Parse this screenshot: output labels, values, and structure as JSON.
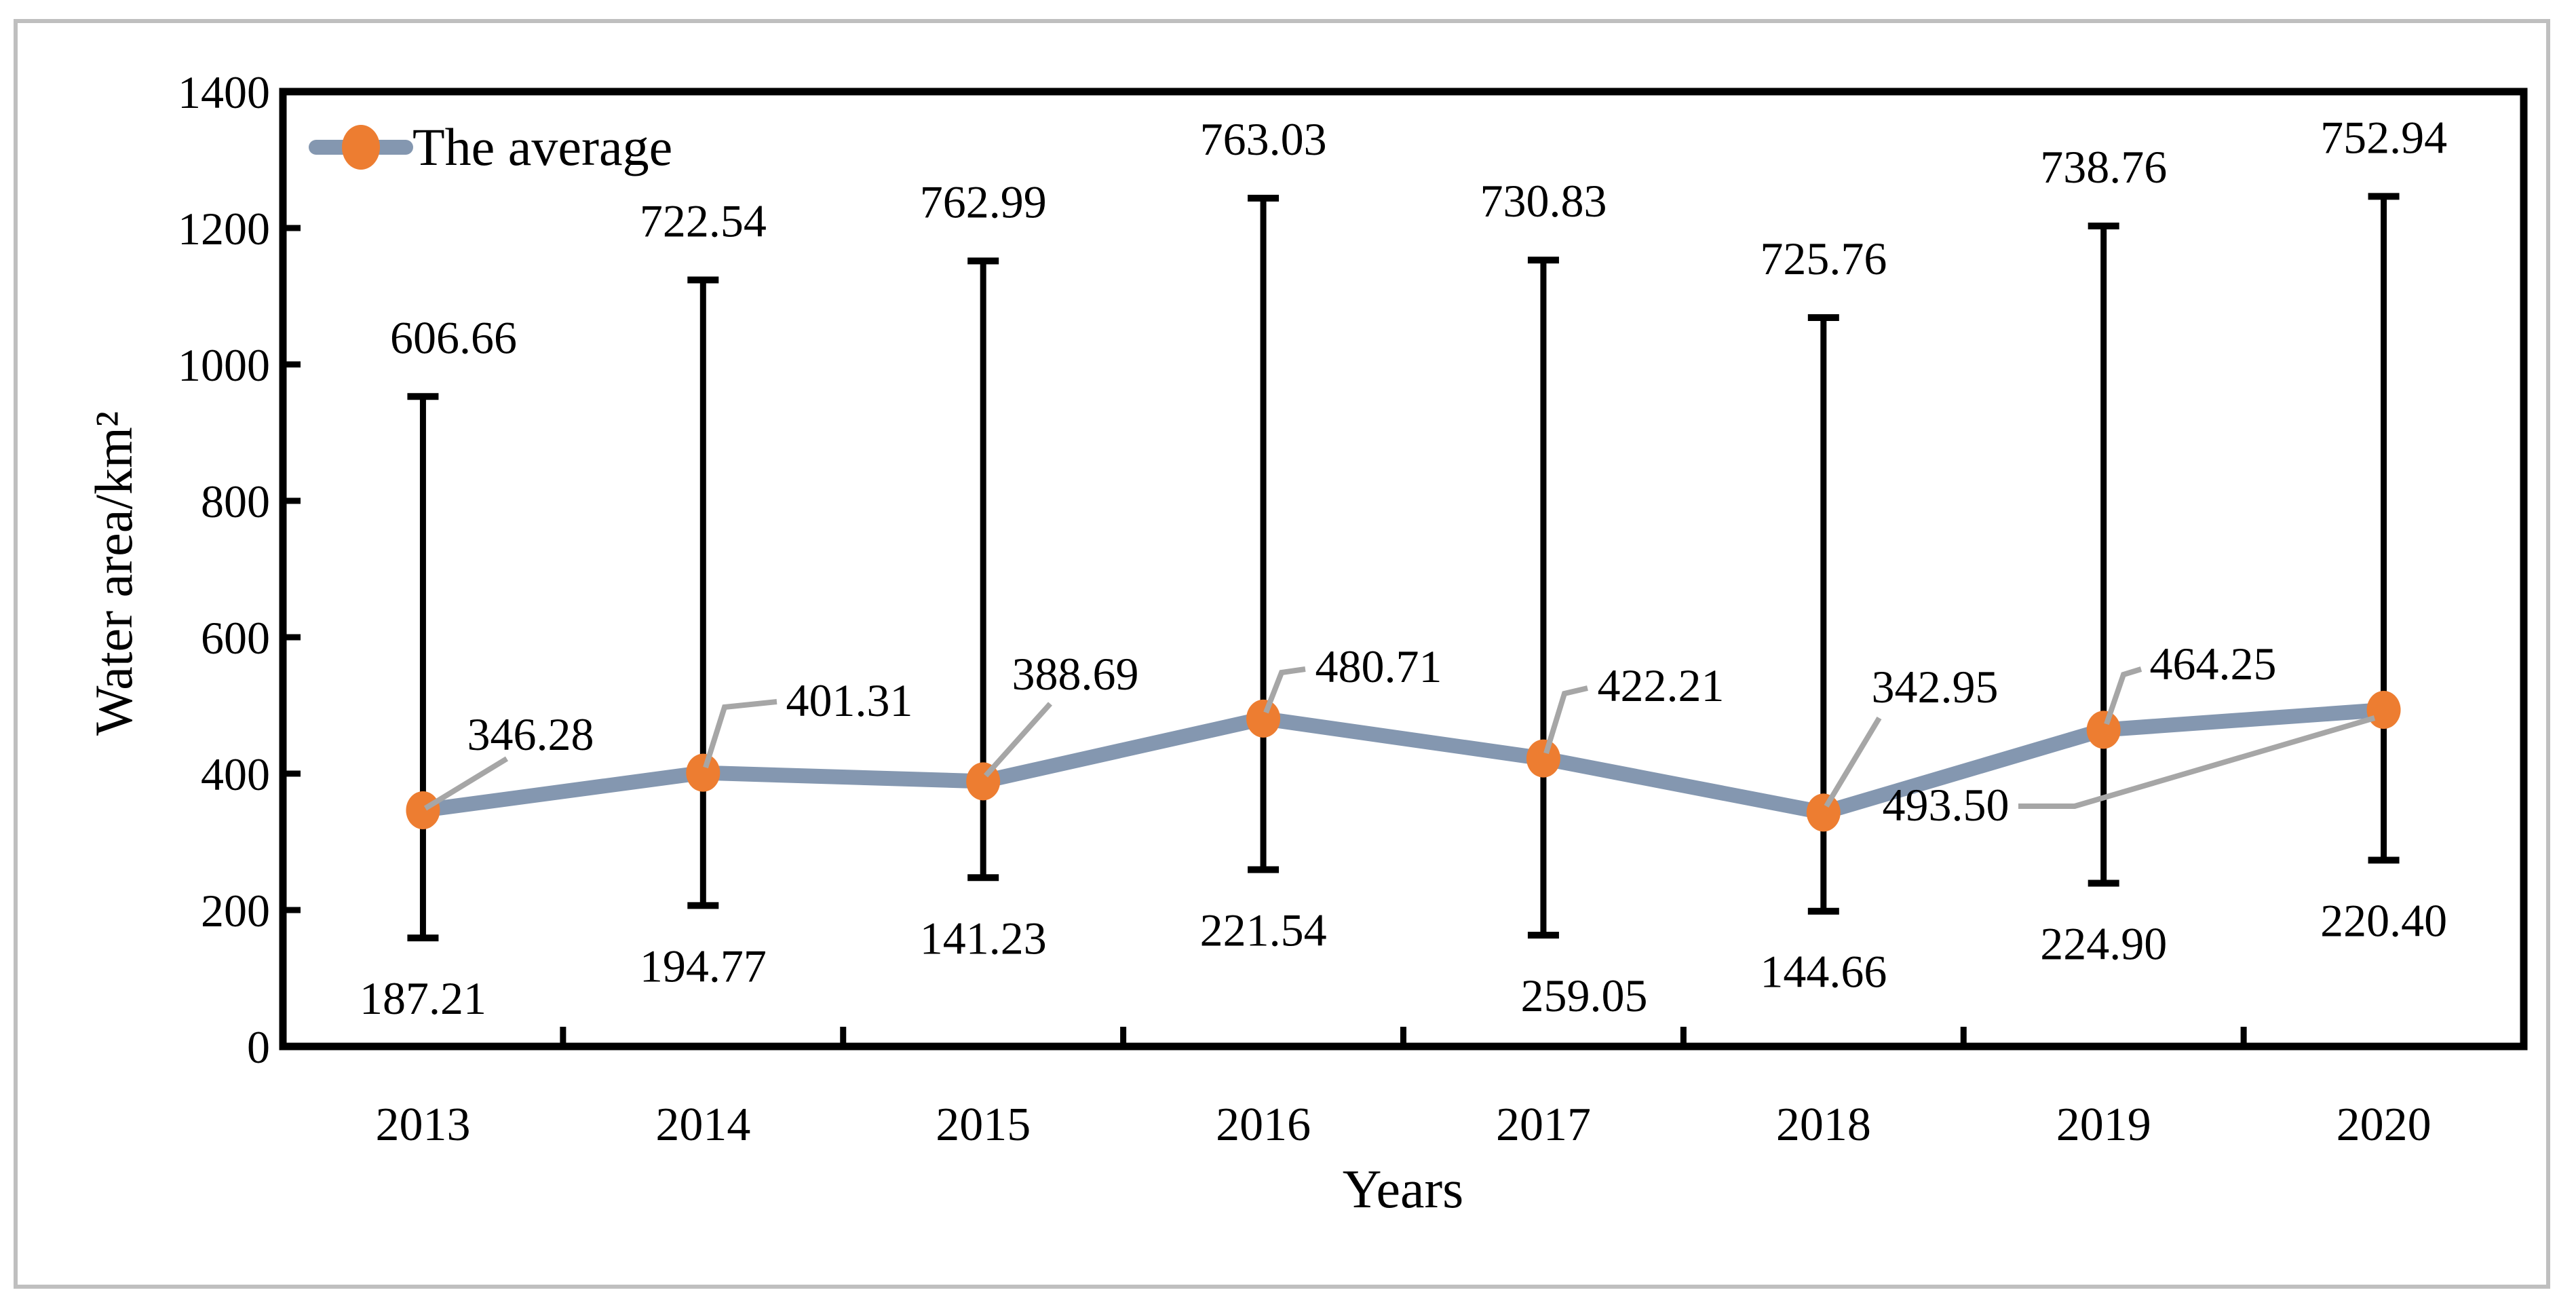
{
  "figure": {
    "kind": "line chart with error bars",
    "background": "#FFFFFF"
  },
  "legend": {
    "label": "The average",
    "position": "top-left-inside"
  },
  "chart_data": {
    "type": "line",
    "categories": [
      "2013",
      "2014",
      "2015",
      "2016",
      "2017",
      "2018",
      "2019",
      "2020"
    ],
    "series": [
      {
        "name": "The average",
        "values": [
          346.28,
          401.31,
          388.69,
          480.71,
          422.21,
          342.95,
          464.25,
          493.5
        ]
      }
    ],
    "error_bars": {
      "plus": [
        606.66,
        722.54,
        762.99,
        763.03,
        730.83,
        725.76,
        738.76,
        752.94
      ],
      "minus": [
        187.21,
        194.77,
        141.23,
        221.54,
        259.05,
        144.66,
        224.9,
        220.4
      ]
    },
    "point_labels": {
      "average": [
        "346.28",
        "401.31",
        "388.69",
        "480.71",
        "422.21",
        "342.95",
        "464.25",
        "493.50"
      ],
      "upper": [
        "606.66",
        "722.54",
        "762.99",
        "763.03",
        "730.83",
        "725.76",
        "738.76",
        "752.94"
      ],
      "lower": [
        "187.21",
        "194.77",
        "141.23",
        "221.54",
        "259.05",
        "144.66",
        "224.90",
        "220.40"
      ]
    },
    "xlabel": "Years",
    "ylabel": "Water area/km²",
    "ylim": [
      0,
      1400
    ],
    "yticks": [
      0,
      200,
      400,
      600,
      800,
      1000,
      1200,
      1400
    ],
    "grid": false,
    "legend_position": "top-left-inside"
  },
  "colors": {
    "line": "#8497B0",
    "marker": "#ED7D31",
    "leader": "#A6A6A6",
    "axis": "#000000",
    "text": "#000000",
    "outer_border": "#BFBFBF",
    "background": "#FFFFFF"
  }
}
